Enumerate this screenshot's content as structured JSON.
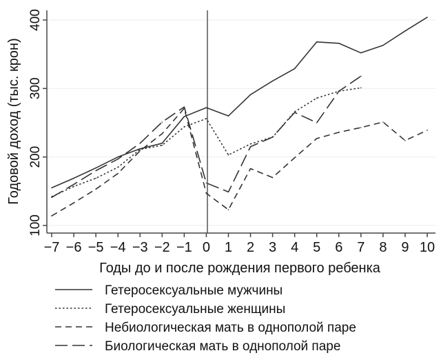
{
  "chart_data": {
    "type": "line",
    "title": "",
    "xlabel": "Годы до и после рождения первого ребенка",
    "ylabel": "Годовой доход (тыс. крон)",
    "xlim": [
      -7,
      10
    ],
    "ylim": [
      90,
      410
    ],
    "x_ticks": [
      -7,
      -6,
      -5,
      -4,
      -3,
      -2,
      -1,
      0,
      1,
      2,
      3,
      4,
      5,
      6,
      7,
      8,
      9,
      10
    ],
    "x_tick_labels": [
      "−7",
      "−6",
      "−5",
      "−4",
      "−3",
      "−2",
      "−1",
      "0",
      "1",
      "2",
      "3",
      "4",
      "5",
      "6",
      "7",
      "8",
      "9",
      "10"
    ],
    "y_ticks": [
      100,
      200,
      300,
      400
    ],
    "y_tick_labels": [
      "100",
      "200",
      "300",
      "400"
    ],
    "grid": "horizontal",
    "reference_line_x": 0,
    "legend_position": "bottom",
    "series": [
      {
        "name": "Гетеросексуальные мужчины",
        "style": "solid",
        "color": "#333333",
        "x": [
          -7,
          -6,
          -5,
          -4,
          -3,
          -2,
          -1,
          0,
          1,
          2,
          3,
          4,
          5,
          6,
          7,
          8,
          9,
          10
        ],
        "values": [
          155,
          169,
          184,
          200,
          212,
          220,
          259,
          272,
          260,
          291,
          311,
          329,
          368,
          366,
          352,
          363,
          384,
          404
        ]
      },
      {
        "name": "Гетеросексуальные женщины",
        "style": "dotted",
        "color": "#333333",
        "x": [
          -7,
          -6,
          -5,
          -4,
          -3,
          -2,
          -1,
          0,
          1,
          2,
          3,
          4,
          5,
          6,
          7
        ],
        "values": [
          142,
          157,
          169,
          185,
          211,
          217,
          244,
          256,
          203,
          219,
          229,
          266,
          286,
          296,
          301
        ]
      },
      {
        "name": "Небиологическая мать в однополой паре",
        "style": "dashed",
        "color": "#333333",
        "x": [
          -7,
          -6,
          -5,
          -4,
          -3,
          -2,
          -1,
          0,
          1,
          2,
          3,
          4,
          5,
          6,
          7,
          8,
          9,
          10
        ],
        "values": [
          114,
          133,
          153,
          176,
          209,
          234,
          271,
          147,
          123,
          183,
          170,
          199,
          227,
          236,
          243,
          251,
          224,
          239
        ]
      },
      {
        "name": "Биологическая мать в однополой паре",
        "style": "longdash",
        "color": "#333333",
        "x": [
          -7,
          -6,
          -5,
          -4,
          -3,
          -2,
          -1,
          0,
          1,
          2,
          3,
          4,
          5,
          6,
          7
        ],
        "values": [
          141,
          160,
          180,
          197,
          220,
          251,
          273,
          162,
          149,
          215,
          229,
          265,
          250,
          296,
          318
        ]
      }
    ]
  }
}
